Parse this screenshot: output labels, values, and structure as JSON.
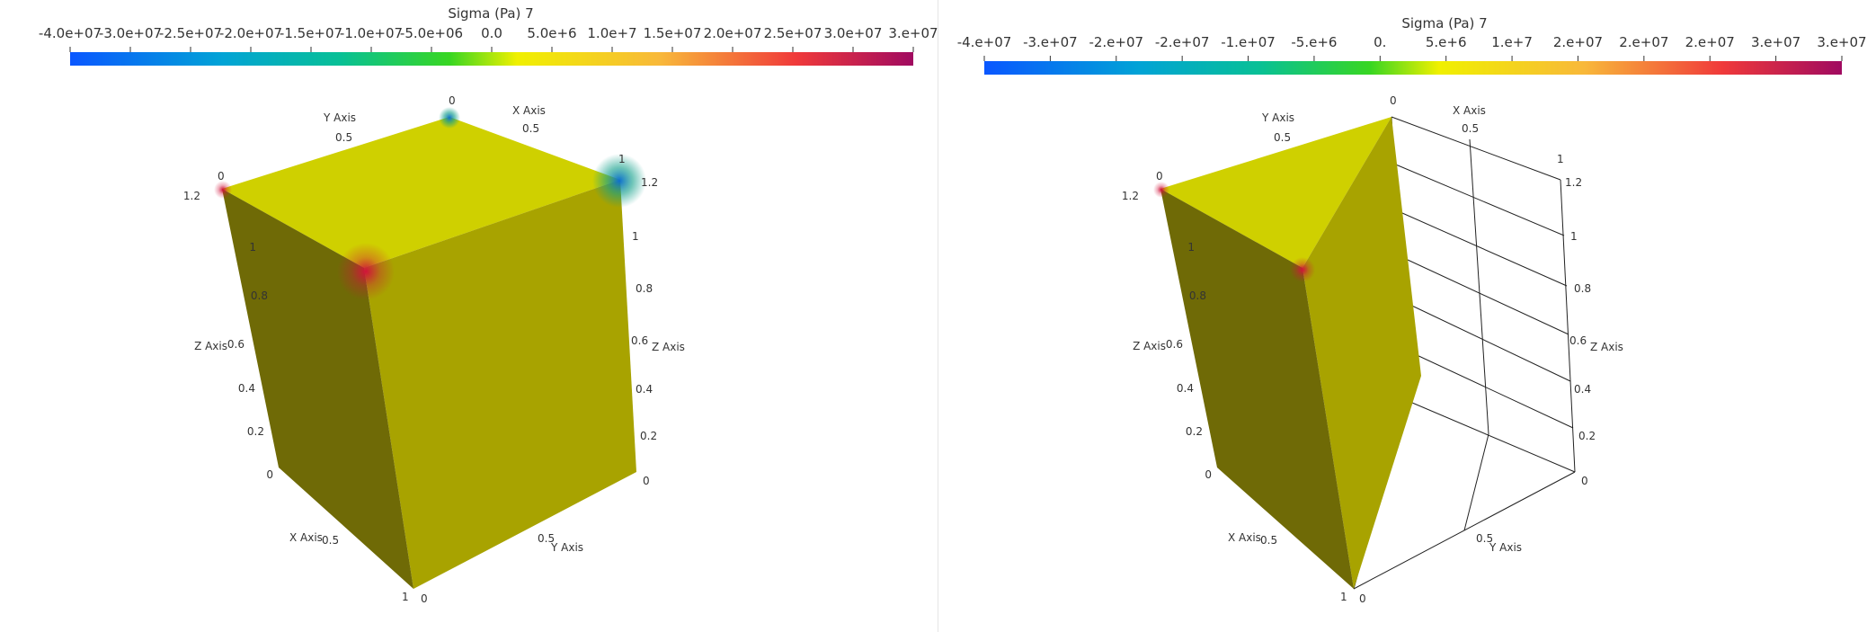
{
  "views": [
    {
      "colorbar": {
        "title": "Sigma (Pa) 7",
        "ticks": [
          "-4.0e+07",
          "-3.0e+07",
          "-2.5e+07",
          "-2.0e+07",
          "-1.5e+07",
          "-1.0e+07",
          "-5.0e+06",
          "0.0",
          "5.0e+6",
          "1.0e+7",
          "1.5e+07",
          "2.0e+07",
          "2.5e+07",
          "3.0e+07",
          "3.e+07"
        ]
      },
      "axes": {
        "x_axis": "X Axis",
        "y_axis": "Y Axis",
        "z_axis": "Z Axis",
        "z_left_ticks": [
          "1.2",
          "1",
          "0.8",
          "0.6",
          "0.4",
          "0.2",
          "0"
        ],
        "z_right_ticks": [
          "1.2",
          "1",
          "0.8",
          "0.6",
          "0.4",
          "0.2",
          "0"
        ],
        "x_bottom_ticks": [
          "0.5",
          "1"
        ],
        "y_bottom_ticks": [
          "0.5",
          "0"
        ],
        "y_top_tick": "0.5",
        "x_top_ticks": [
          "0",
          "0.5",
          "1"
        ],
        "corner_tl": "0"
      }
    },
    {
      "colorbar": {
        "title": "Sigma (Pa) 7",
        "ticks": [
          "-4.e+07",
          "-3.e+07",
          "-2.e+07",
          "-2.e+07",
          "-1.e+07",
          "-5.e+6",
          "0.",
          "5.e+6",
          "1.e+7",
          "2.e+07",
          "2.e+07",
          "2.e+07",
          "3.e+07",
          "3.e+07"
        ]
      },
      "axes": {
        "x_axis": "X Axis",
        "y_axis": "Y Axis",
        "z_axis": "Z Axis",
        "z_left_ticks": [
          "1.2",
          "1",
          "0.8",
          "0.6",
          "0.4",
          "0.2",
          "0"
        ],
        "z_right_ticks": [
          "1.2",
          "1",
          "0.8",
          "0.6",
          "0.4",
          "0.2",
          "0"
        ],
        "x_bottom_ticks": [
          "0.5",
          "1"
        ],
        "y_bottom_ticks": [
          "0.5",
          "0"
        ],
        "y_top_tick": "0.5",
        "x_top_ticks": [
          "0",
          "0.5",
          "1"
        ],
        "corner_tl": "0"
      }
    }
  ],
  "colors": {
    "face_top": "#cfd000",
    "face_right": "#a8a300",
    "face_left": "#6f6a06",
    "hotspot": "#d0143a",
    "coldspot": "#1a8a7a"
  }
}
